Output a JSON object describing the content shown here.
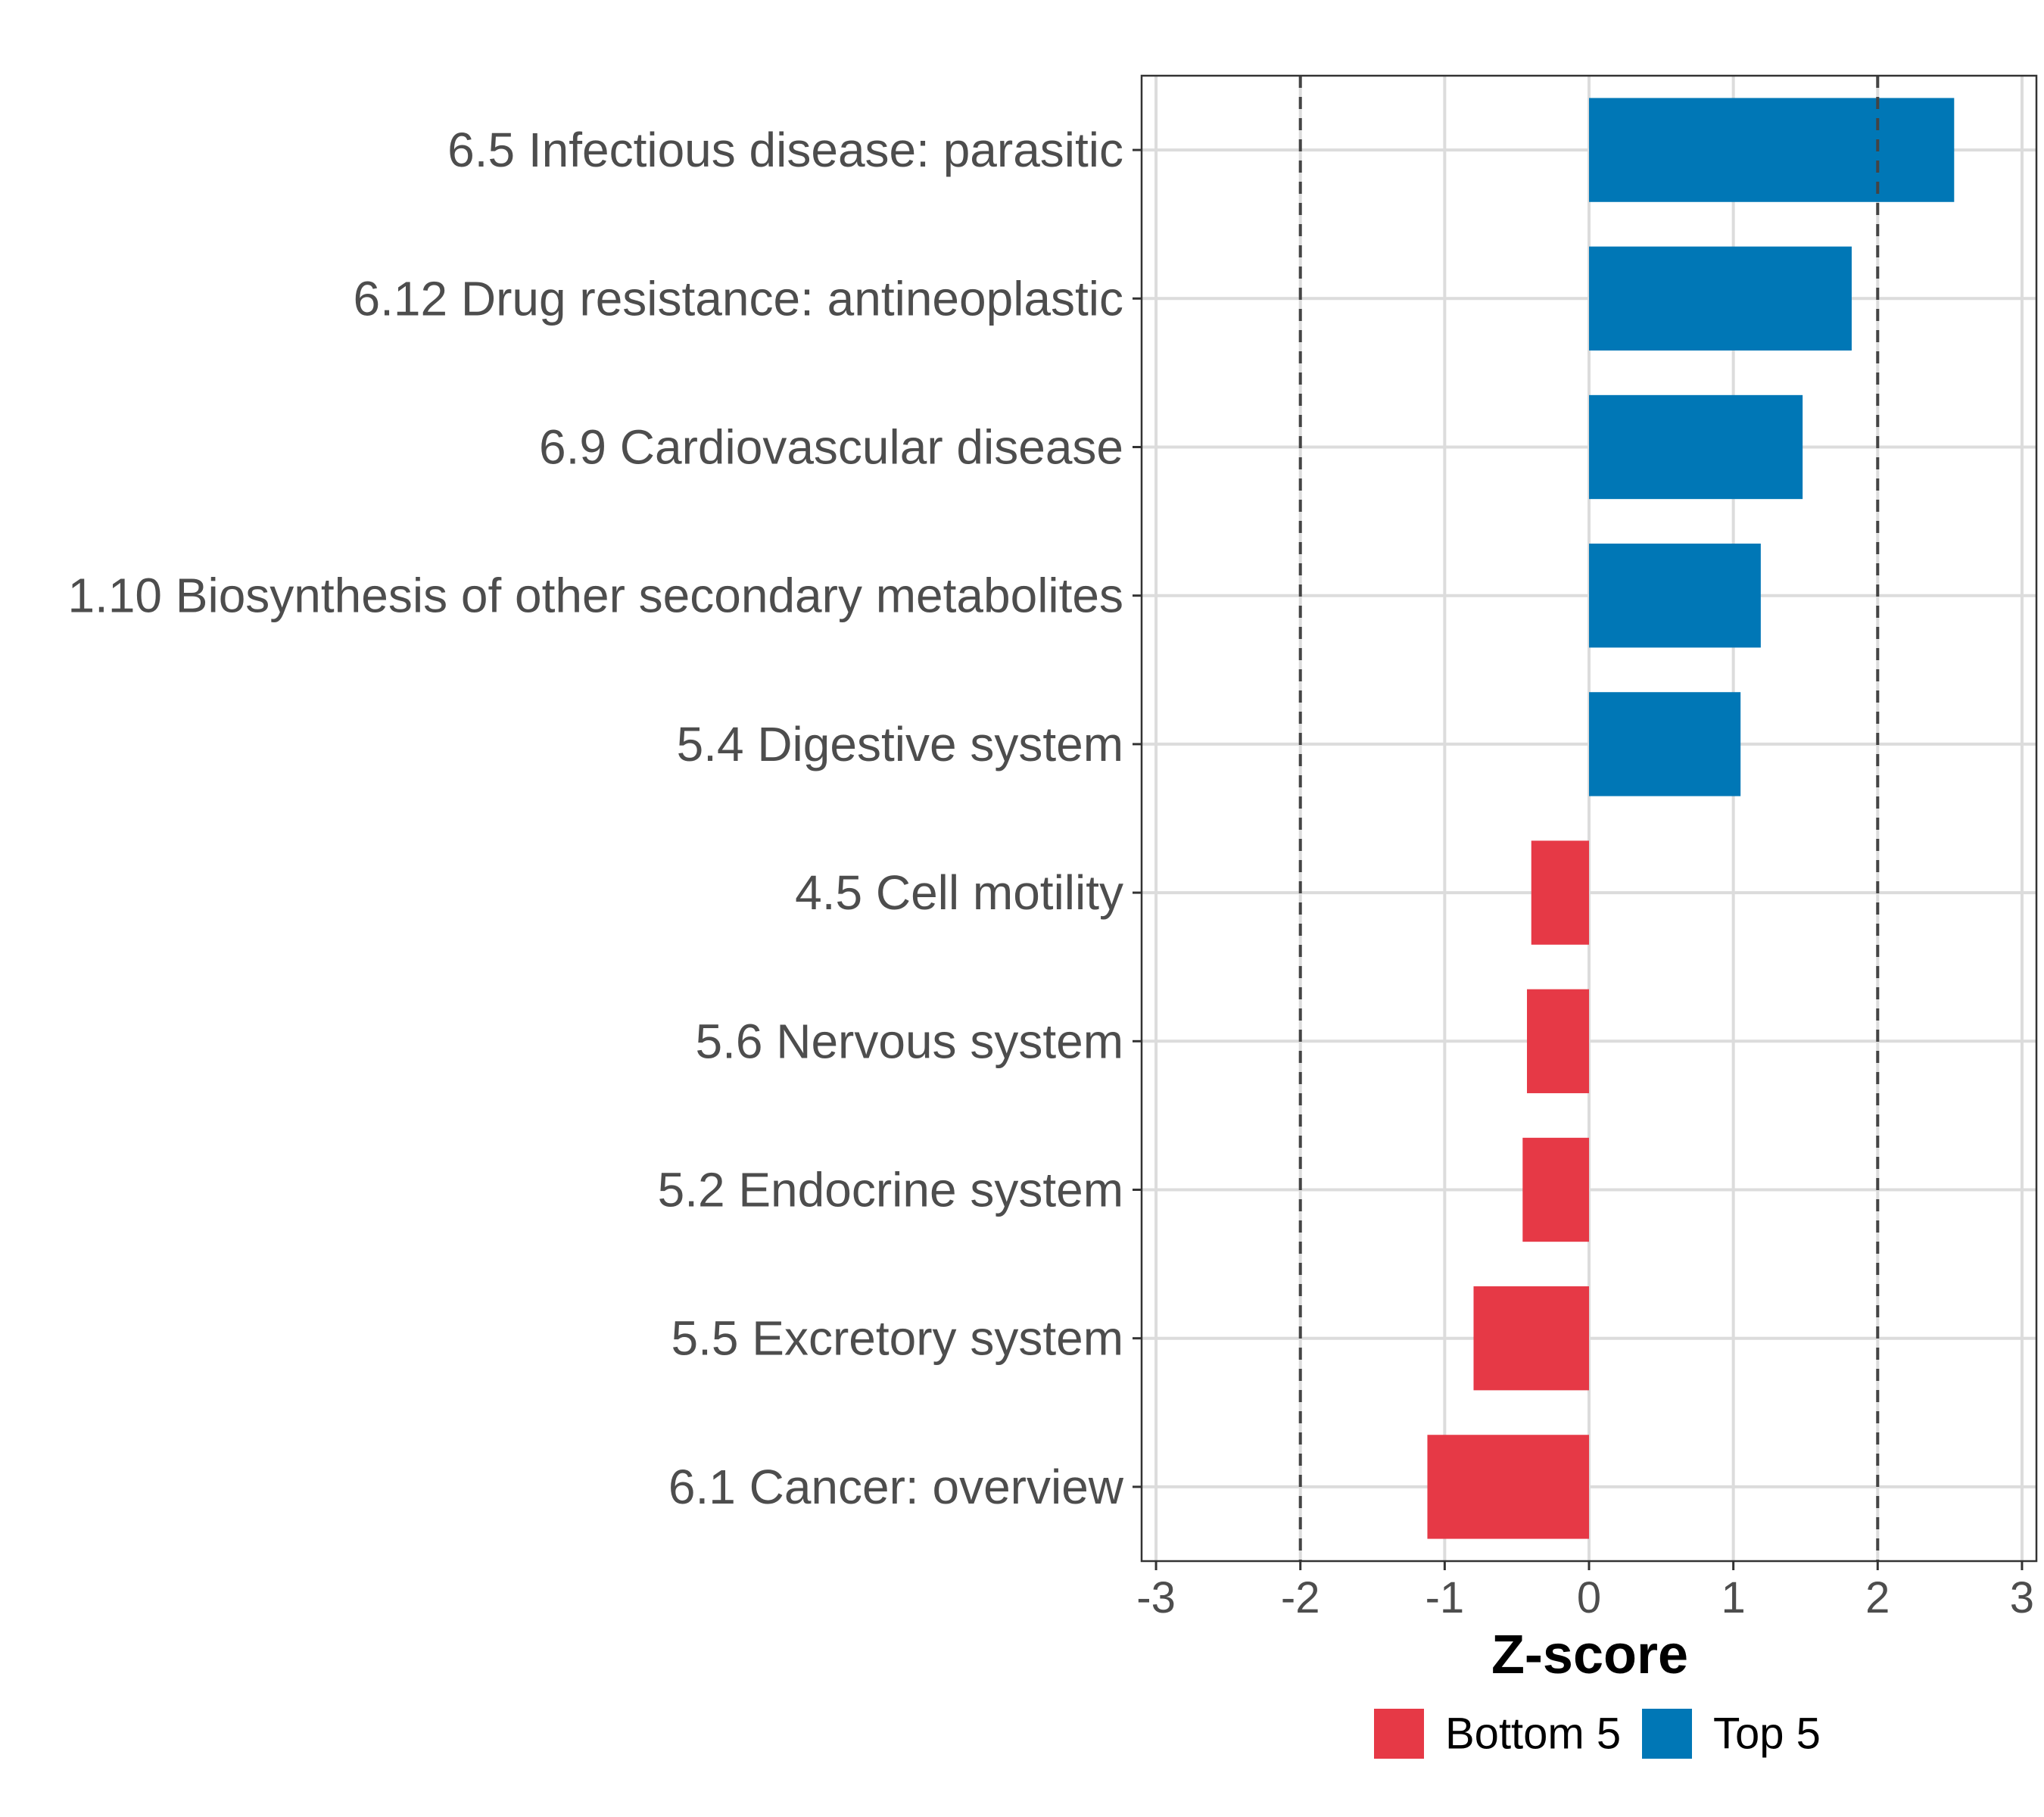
{
  "chart_data": {
    "type": "bar",
    "orientation": "horizontal",
    "title": "",
    "xlabel": "Z-score",
    "ylabel": "",
    "xlim": [
      -3.1,
      3.1
    ],
    "x_ticks": [
      -3,
      -2,
      -1,
      0,
      1,
      2,
      3
    ],
    "x_tick_labels": [
      "-3",
      "-2",
      "-1",
      "0",
      "1",
      "2",
      "3"
    ],
    "reference_lines": [
      -2,
      2
    ],
    "grid": true,
    "legend_position": "bottom",
    "categories": [
      "6.5 Infectious disease: parasitic",
      "6.12 Drug resistance: antineoplastic",
      "6.9 Cardiovascular disease",
      "1.10 Biosynthesis of other secondary metabolites",
      "5.4 Digestive system",
      "4.5 Cell motility",
      "5.6 Nervous system",
      "5.2 Endocrine system",
      "5.5 Excretory system",
      "6.1 Cancer: overview"
    ],
    "values": [
      2.53,
      1.82,
      1.48,
      1.19,
      1.05,
      -0.4,
      -0.43,
      -0.46,
      -0.8,
      -1.12
    ],
    "groups": [
      "Top 5",
      "Top 5",
      "Top 5",
      "Top 5",
      "Top 5",
      "Bottom 5",
      "Bottom 5",
      "Bottom 5",
      "Bottom 5",
      "Bottom 5"
    ],
    "series": [
      {
        "name": "Bottom 5",
        "color": "#e63946"
      },
      {
        "name": "Top 5",
        "color": "#0077b6"
      }
    ]
  }
}
